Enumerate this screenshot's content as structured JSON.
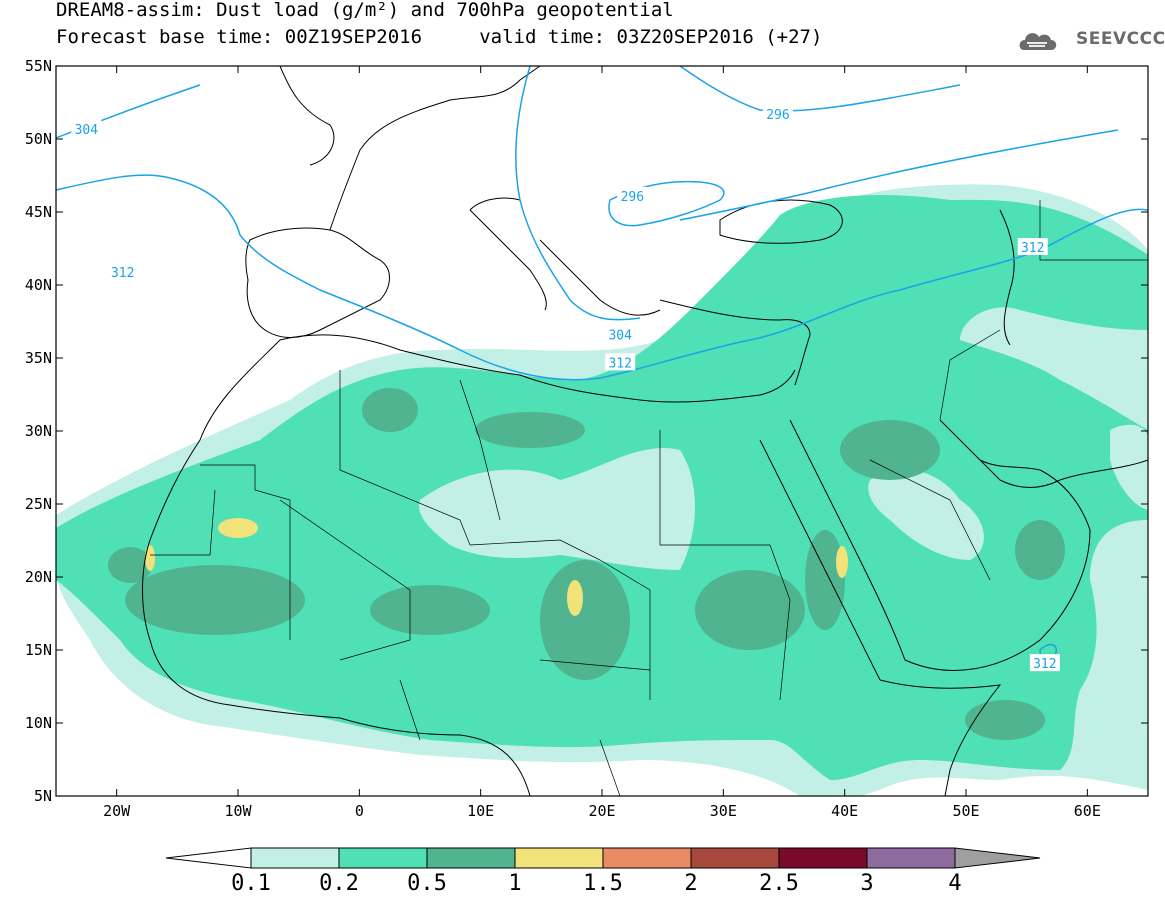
{
  "header": {
    "title_line1": "DREAM8-assim: Dust load (g/m²) and 700hPa geopotential",
    "title_line2": "Forecast base time: 00Z19SEP2016     valid time: 03Z20SEP2016 (+27)",
    "logo_text": "SEEVCCC"
  },
  "map": {
    "lon_range": [
      -25,
      65
    ],
    "lat_range": [
      5,
      55
    ],
    "lat_ticks": [
      {
        "v": 55,
        "label": "55N"
      },
      {
        "v": 50,
        "label": "50N"
      },
      {
        "v": 45,
        "label": "45N"
      },
      {
        "v": 40,
        "label": "40N"
      },
      {
        "v": 35,
        "label": "35N"
      },
      {
        "v": 30,
        "label": "30N"
      },
      {
        "v": 25,
        "label": "25N"
      },
      {
        "v": 20,
        "label": "20N"
      },
      {
        "v": 15,
        "label": "15N"
      },
      {
        "v": 10,
        "label": "10N"
      },
      {
        "v": 5,
        "label": "5N"
      }
    ],
    "lon_ticks": [
      {
        "v": -20,
        "label": "20W"
      },
      {
        "v": -10,
        "label": "10W"
      },
      {
        "v": 0,
        "label": "0"
      },
      {
        "v": 10,
        "label": "10E"
      },
      {
        "v": 20,
        "label": "20E"
      },
      {
        "v": 30,
        "label": "30E"
      },
      {
        "v": 40,
        "label": "40E"
      },
      {
        "v": 50,
        "label": "50E"
      },
      {
        "v": 60,
        "label": "60E"
      }
    ],
    "contour_color": "#1aa3e8",
    "contour_labels": [
      {
        "text": "304",
        "lon": -22.5,
        "lat": 50.7
      },
      {
        "text": "296",
        "lon": 34.5,
        "lat": 51.7
      },
      {
        "text": "296",
        "lon": 22.5,
        "lat": 46.1
      },
      {
        "text": "312",
        "lon": -19.5,
        "lat": 40.9
      },
      {
        "text": "312",
        "lon": 55.5,
        "lat": 42.6
      },
      {
        "text": "304",
        "lon": 21.5,
        "lat": 36.6
      },
      {
        "text": "312",
        "lon": 21.5,
        "lat": 34.7
      },
      {
        "text": "312",
        "lon": 56.5,
        "lat": 14.1
      }
    ]
  },
  "colorbar": {
    "colors": [
      "#ffffff",
      "#c2f0e6",
      "#4fe0b6",
      "#4fb48f",
      "#f2e27a",
      "#e98c63",
      "#a8483d",
      "#7a0a2a",
      "#8e6b9e",
      "#9f9f9f"
    ],
    "labels": [
      "0.1",
      "0.2",
      "0.5",
      "1",
      "1.5",
      "2",
      "2.5",
      "3",
      "4"
    ]
  }
}
